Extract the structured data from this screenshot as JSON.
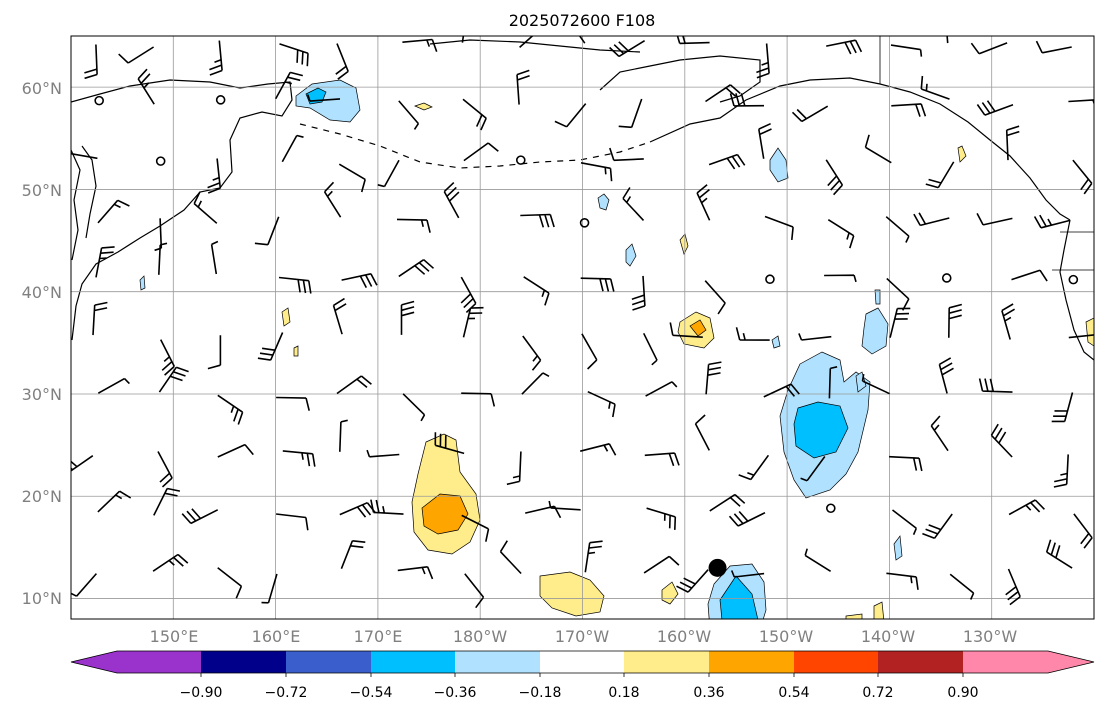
{
  "map": {
    "title": "2025072600 F108",
    "lat_labels": [
      "60°N",
      "50°N",
      "40°N",
      "30°N",
      "20°N",
      "10°N"
    ],
    "lon_labels": [
      "150°E",
      "160°E",
      "170°E",
      "180°W",
      "170°W",
      "160°W",
      "150°W",
      "140°W",
      "130°W"
    ],
    "lon_range": [
      140,
      240
    ],
    "lat_range": [
      8,
      65
    ],
    "storm_marker": {
      "lon": 203.2,
      "lat": 13
    }
  },
  "colorbar": {
    "ticks": [
      "−0.90",
      "−0.72",
      "−0.54",
      "−0.36",
      "−0.18",
      "0.18",
      "0.36",
      "0.54",
      "0.72",
      "0.90"
    ],
    "colors": [
      "#9933cc",
      "#00008b",
      "#3a5fcd",
      "#00bfff",
      "#b0e2ff",
      "#ffffff",
      "#ffec8b",
      "#ffa500",
      "#ff4500",
      "#b22222",
      "#ff88aa"
    ]
  }
}
